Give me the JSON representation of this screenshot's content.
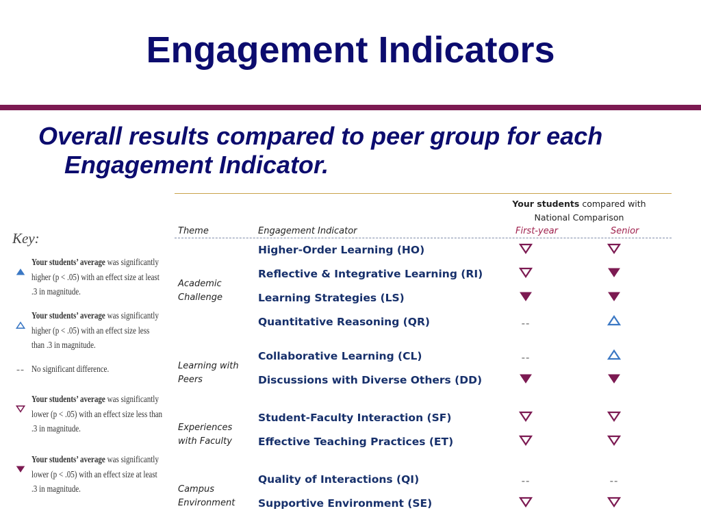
{
  "title": "Engagement Indicators",
  "subtitle": "Overall results compared to peer group for each Engagement Indicator.",
  "key": {
    "title": "Key:",
    "items": [
      {
        "symbol": "filled-up",
        "lead": "Your students’ average",
        "text": " was significantly higher (p < .05) with an effect size at least .3 in magnitude."
      },
      {
        "symbol": "open-up",
        "lead": "Your students’ average",
        "text": " was significantly higher (p < .05) with an effect size less than .3 in magnitude."
      },
      {
        "symbol": "dash",
        "lead": "",
        "text": "No significant difference."
      },
      {
        "symbol": "open-down",
        "lead": "Your students’ average",
        "text": " was significantly lower (p < .05) with an effect size less than .3 in magnitude."
      },
      {
        "symbol": "filled-down",
        "lead": "Your students’ average",
        "text": " was significantly lower (p < .05) with an effect size at least .3 in magnitude."
      }
    ]
  },
  "table": {
    "comparison_header_bold": "Your students",
    "comparison_header_rest": " compared with National Comparison",
    "col_theme": "Theme",
    "col_indicator": "Engagement Indicator",
    "col_first_year": "First-year",
    "col_senior": "Senior",
    "groups": [
      {
        "theme": "Academic Challenge",
        "rows": [
          {
            "indicator": "Higher-Order Learning (HO)",
            "first_year": "open-down",
            "senior": "open-down"
          },
          {
            "indicator": "Reflective & Integrative Learning (RI)",
            "first_year": "open-down",
            "senior": "filled-down"
          },
          {
            "indicator": "Learning Strategies (LS)",
            "first_year": "filled-down",
            "senior": "filled-down"
          },
          {
            "indicator": "Quantitative Reasoning (QR)",
            "first_year": "dash",
            "senior": "open-up"
          }
        ]
      },
      {
        "theme": "Learning with Peers",
        "rows": [
          {
            "indicator": "Collaborative Learning (CL)",
            "first_year": "dash",
            "senior": "open-up"
          },
          {
            "indicator": "Discussions with Diverse Others (DD)",
            "first_year": "filled-down",
            "senior": "filled-down"
          }
        ]
      },
      {
        "theme": "Experiences with Faculty",
        "rows": [
          {
            "indicator": "Student-Faculty Interaction (SF)",
            "first_year": "open-down",
            "senior": "open-down"
          },
          {
            "indicator": "Effective Teaching Practices (ET)",
            "first_year": "open-down",
            "senior": "open-down"
          }
        ]
      },
      {
        "theme": "Campus Environment",
        "rows": [
          {
            "indicator": "Quality of Interactions (QI)",
            "first_year": "dash",
            "senior": "dash"
          },
          {
            "indicator": "Supportive Environment (SE)",
            "first_year": "open-down",
            "senior": "open-down"
          }
        ]
      }
    ]
  },
  "colors": {
    "title": "#0c0c6e",
    "accent_bar": "#7c1a52",
    "down_marker": "#7c1a52",
    "up_marker": "#3b78c4",
    "indicator_text": "#17306b"
  }
}
